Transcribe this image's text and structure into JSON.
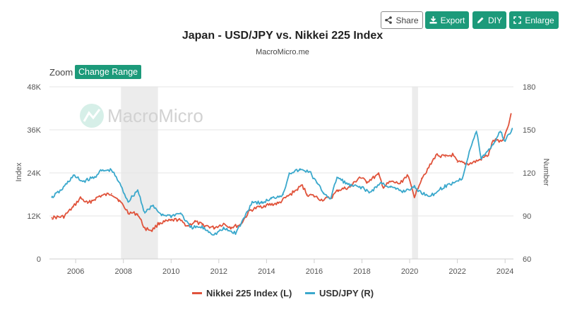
{
  "toolbar": {
    "share_label": "Share",
    "export_label": "Export",
    "diy_label": "DIY",
    "enlarge_label": "Enlarge"
  },
  "zoom": {
    "label": "Zoom",
    "change_range_label": "Change Range"
  },
  "watermark": "MacroMicro",
  "colors": {
    "accent": "#1c9a7a",
    "nikkei": "#e0533b",
    "usdjpy": "#3aa8cc",
    "recession": "#ececec"
  },
  "chart_data": {
    "type": "line",
    "title": "Japan - USD/JPY vs. Nikkei 225 Index",
    "subtitle": "MacroMicro.me",
    "y_left_label": "Index",
    "y_right_label": "Number",
    "y_left_ticks": [
      "0",
      "12K",
      "24K",
      "36K",
      "48K"
    ],
    "y_right_ticks": [
      "60",
      "90",
      "120",
      "150",
      "180"
    ],
    "x_ticks": [
      "2006",
      "2008",
      "2010",
      "2012",
      "2014",
      "2016",
      "2018",
      "2020",
      "2022",
      "2024"
    ],
    "ylim_left": [
      0,
      48000
    ],
    "ylim_right": [
      60,
      180
    ],
    "xlim": [
      2004.9,
      2024.35
    ],
    "recession_shading": [
      [
        2007.9,
        2009.45
      ],
      [
        2020.1,
        2020.35
      ]
    ],
    "series": [
      {
        "name": "Nikkei 225 Index (L)",
        "axis": "left",
        "points": [
          [
            2005.0,
            11500
          ],
          [
            2005.5,
            11800
          ],
          [
            2005.9,
            14500
          ],
          [
            2006.2,
            17000
          ],
          [
            2006.5,
            15500
          ],
          [
            2007.0,
            17500
          ],
          [
            2007.5,
            18200
          ],
          [
            2007.8,
            16500
          ],
          [
            2008.2,
            13000
          ],
          [
            2008.6,
            12500
          ],
          [
            2008.9,
            8500
          ],
          [
            2009.2,
            8000
          ],
          [
            2009.5,
            10000
          ],
          [
            2010.0,
            10700
          ],
          [
            2010.3,
            11000
          ],
          [
            2010.7,
            9200
          ],
          [
            2011.0,
            10400
          ],
          [
            2011.3,
            9500
          ],
          [
            2011.8,
            8700
          ],
          [
            2012.2,
            9800
          ],
          [
            2012.5,
            8800
          ],
          [
            2012.9,
            9500
          ],
          [
            2013.3,
            13500
          ],
          [
            2013.7,
            14500
          ],
          [
            2014.0,
            15000
          ],
          [
            2014.5,
            15500
          ],
          [
            2014.9,
            17500
          ],
          [
            2015.3,
            19500
          ],
          [
            2015.5,
            20500
          ],
          [
            2015.7,
            18000
          ],
          [
            2016.0,
            17500
          ],
          [
            2016.3,
            16500
          ],
          [
            2016.7,
            17000
          ],
          [
            2017.0,
            19200
          ],
          [
            2017.5,
            20000
          ],
          [
            2017.9,
            22800
          ],
          [
            2018.2,
            21500
          ],
          [
            2018.7,
            23500
          ],
          [
            2018.9,
            20000
          ],
          [
            2019.2,
            21500
          ],
          [
            2019.6,
            21000
          ],
          [
            2019.9,
            23500
          ],
          [
            2020.2,
            17500
          ],
          [
            2020.5,
            22500
          ],
          [
            2020.9,
            26500
          ],
          [
            2021.1,
            29000
          ],
          [
            2021.5,
            28500
          ],
          [
            2021.8,
            29000
          ],
          [
            2022.0,
            27000
          ],
          [
            2022.5,
            26500
          ],
          [
            2022.9,
            27500
          ],
          [
            2023.3,
            29000
          ],
          [
            2023.5,
            33000
          ],
          [
            2023.9,
            33000
          ],
          [
            2024.1,
            36500
          ],
          [
            2024.25,
            40500
          ]
        ]
      },
      {
        "name": "USD/JPY (R)",
        "axis": "right",
        "points": [
          [
            2005.0,
            103
          ],
          [
            2005.4,
            108
          ],
          [
            2005.9,
            118
          ],
          [
            2006.3,
            114
          ],
          [
            2006.8,
            117
          ],
          [
            2007.0,
            121
          ],
          [
            2007.5,
            122
          ],
          [
            2007.8,
            114
          ],
          [
            2008.2,
            100
          ],
          [
            2008.6,
            108
          ],
          [
            2008.9,
            92
          ],
          [
            2009.2,
            97
          ],
          [
            2009.6,
            91
          ],
          [
            2010.0,
            90
          ],
          [
            2010.4,
            92
          ],
          [
            2010.8,
            82
          ],
          [
            2011.3,
            82
          ],
          [
            2011.8,
            77
          ],
          [
            2012.2,
            81
          ],
          [
            2012.7,
            78
          ],
          [
            2012.95,
            85
          ],
          [
            2013.4,
            100
          ],
          [
            2013.8,
            99
          ],
          [
            2014.2,
            102
          ],
          [
            2014.7,
            105
          ],
          [
            2014.95,
            120
          ],
          [
            2015.4,
            122
          ],
          [
            2015.8,
            121
          ],
          [
            2016.1,
            113
          ],
          [
            2016.4,
            106
          ],
          [
            2016.7,
            102
          ],
          [
            2016.95,
            117
          ],
          [
            2017.5,
            111
          ],
          [
            2018.0,
            110
          ],
          [
            2018.3,
            106
          ],
          [
            2018.8,
            113
          ],
          [
            2019.2,
            110
          ],
          [
            2019.7,
            107
          ],
          [
            2020.2,
            110
          ],
          [
            2020.5,
            106
          ],
          [
            2020.9,
            104
          ],
          [
            2021.3,
            109
          ],
          [
            2021.8,
            113
          ],
          [
            2022.2,
            116
          ],
          [
            2022.5,
            135
          ],
          [
            2022.8,
            149
          ],
          [
            2023.0,
            130
          ],
          [
            2023.5,
            140
          ],
          [
            2023.8,
            149
          ],
          [
            2024.0,
            142
          ],
          [
            2024.3,
            151
          ]
        ]
      }
    ],
    "legend_position": "bottom-center"
  }
}
